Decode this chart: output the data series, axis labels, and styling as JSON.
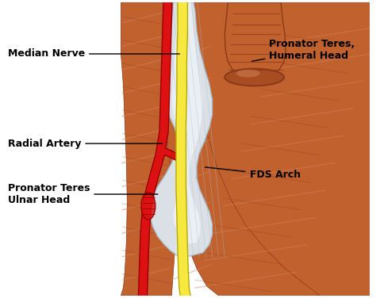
{
  "background_color": "#ffffff",
  "muscle_color": "#c1612e",
  "muscle_dark": "#8b3a1a",
  "muscle_mid": "#a84d22",
  "muscle_light": "#d4835a",
  "nerve_color": "#f7e840",
  "nerve_edge": "#b8a800",
  "artery_color": "#dd1111",
  "artery_edge": "#990000",
  "tendon_color": "#dce8f0",
  "tendon_edge": "#a8c0d0",
  "tendon_highlight": "#f0f6fa",
  "annotation_color": "#000000",
  "labels": {
    "median_nerve": "Median Nerve",
    "radial_artery": "Radial Artery",
    "pronator_ulnar": "Pronator Teres\nUlnar Head",
    "pronator_humeral": "Pronator Teres,\nHumeral Head",
    "fds_arch": "FDS Arch"
  },
  "figsize": [
    4.74,
    3.76
  ],
  "dpi": 100
}
